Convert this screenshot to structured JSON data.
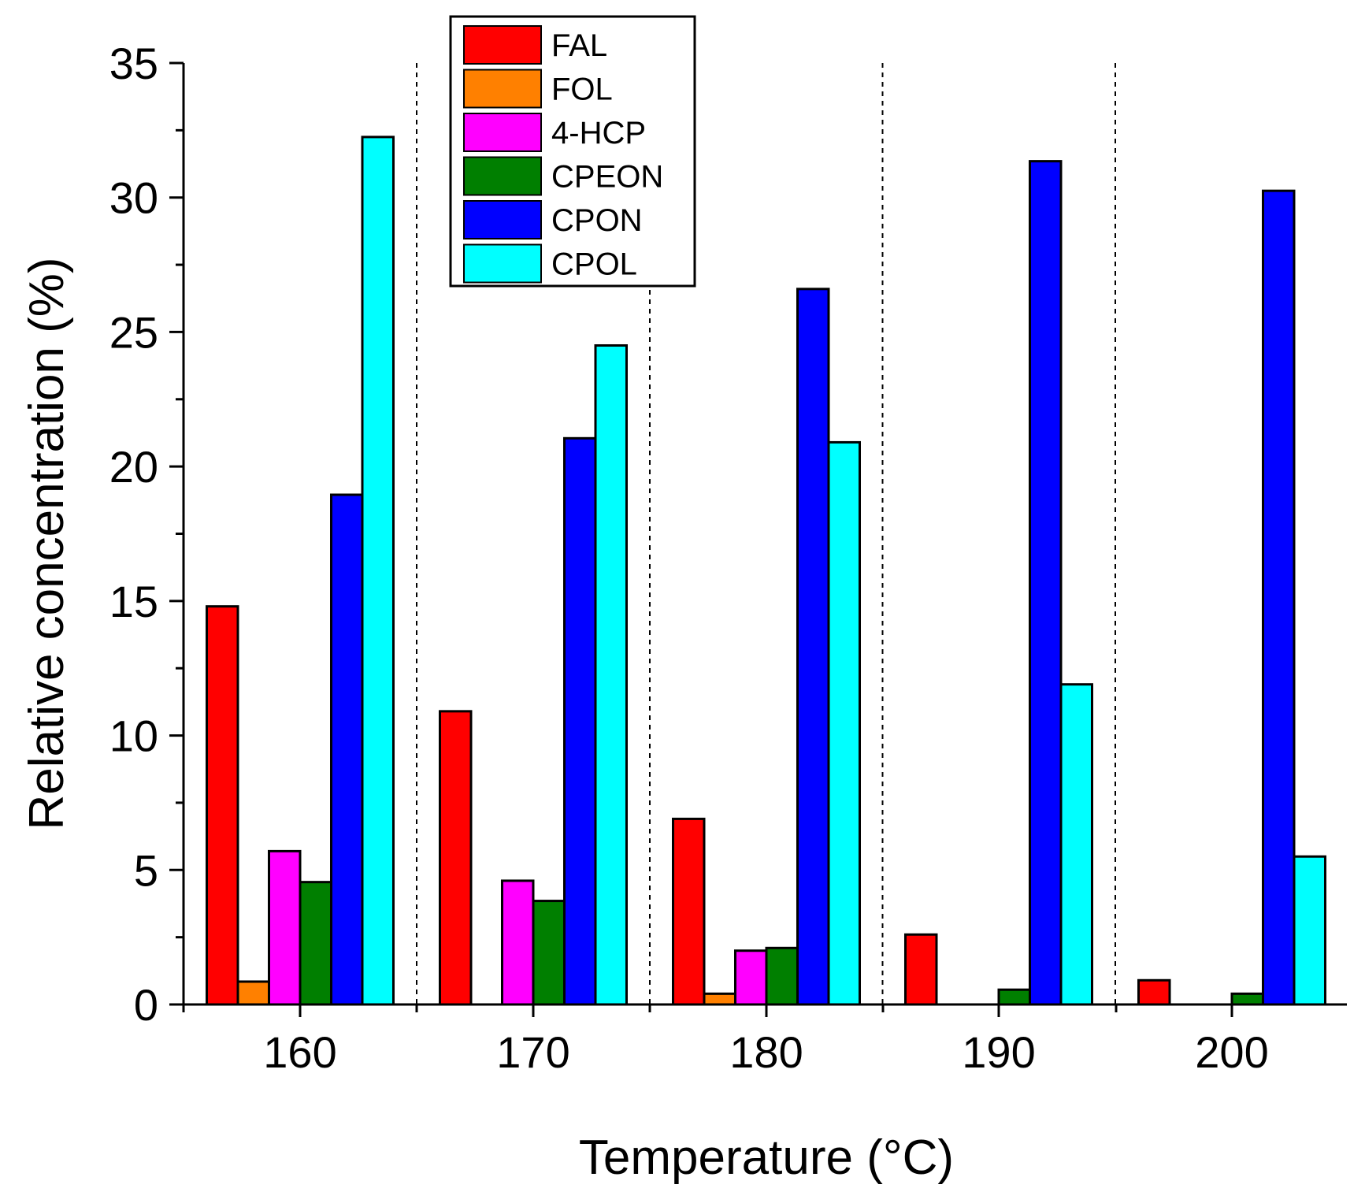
{
  "chart_data": {
    "type": "bar",
    "xlabel": "Temperature (°C)",
    "ylabel": "Relative concentration (%)",
    "categories": [
      "160",
      "170",
      "180",
      "190",
      "200"
    ],
    "ylim": [
      0,
      35
    ],
    "yticks": [
      "0",
      "5",
      "10",
      "15",
      "20",
      "25",
      "30",
      "35"
    ],
    "grid": false,
    "category_separators": "dashed",
    "legend_position": "top-center",
    "series": [
      {
        "name": "FAL",
        "color": "#ff0000",
        "values": [
          14.8,
          10.9,
          6.9,
          2.6,
          0.9
        ]
      },
      {
        "name": "FOL",
        "color": "#ff8000",
        "values": [
          0.85,
          0,
          0.4,
          0,
          0
        ]
      },
      {
        "name": "4-HCP",
        "color": "#ff00ff",
        "values": [
          5.7,
          4.6,
          2.0,
          0,
          0
        ]
      },
      {
        "name": "CPEON",
        "color": "#007f00",
        "values": [
          4.55,
          3.85,
          2.1,
          0.55,
          0.4
        ]
      },
      {
        "name": "CPON",
        "color": "#0000ff",
        "values": [
          18.95,
          21.05,
          26.6,
          31.35,
          30.25
        ]
      },
      {
        "name": "CPOL",
        "color": "#00ffff",
        "values": [
          32.25,
          24.5,
          20.9,
          11.9,
          5.5
        ]
      }
    ]
  }
}
